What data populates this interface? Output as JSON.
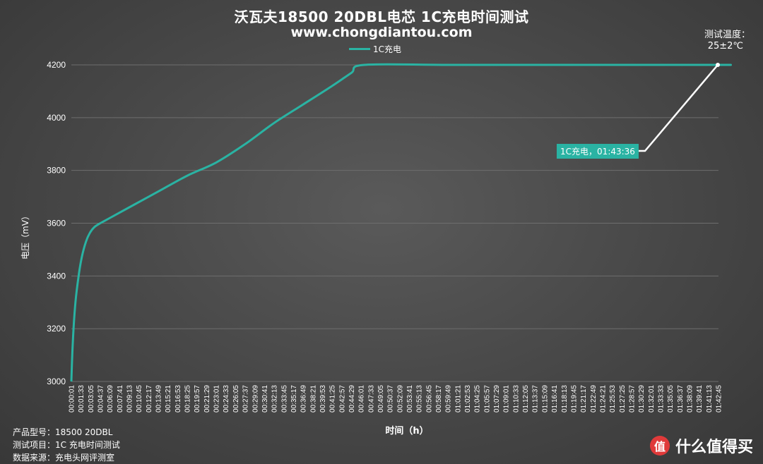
{
  "header": {
    "title": "沃瓦夫18500 20DBL电芯 1C充电时间测试",
    "subtitle": "www.chongdiantou.com",
    "temp_label": "测试温度：",
    "temp_value": "25±2℃"
  },
  "chart_data": {
    "type": "line",
    "title": "沃瓦夫18500 20DBL电芯 1C充电时间测试",
    "xlabel": "时间（h）",
    "ylabel": "电压（mV）",
    "ylim": [
      3000,
      4200
    ],
    "yticks": [
      3000,
      3200,
      3400,
      3600,
      3800,
      4000,
      4200
    ],
    "grid": true,
    "legend_position": "top-center",
    "series": [
      {
        "name": "1C充电",
        "color": "#2ab3a3",
        "points": [
          [
            "00:00:01",
            3000
          ],
          [
            "00:00:15",
            3150
          ],
          [
            "00:00:40",
            3300
          ],
          [
            "00:01:10",
            3400
          ],
          [
            "00:01:40",
            3470
          ],
          [
            "00:02:20",
            3530
          ],
          [
            "00:03:00",
            3565
          ],
          [
            "00:03:40",
            3585
          ],
          [
            "00:04:37",
            3600
          ],
          [
            "00:06:09",
            3620
          ],
          [
            "00:09:13",
            3660
          ],
          [
            "00:13:49",
            3720
          ],
          [
            "00:18:25",
            3780
          ],
          [
            "00:23:01",
            3830
          ],
          [
            "00:27:37",
            3900
          ],
          [
            "00:32:13",
            3980
          ],
          [
            "00:36:49",
            4050
          ],
          [
            "00:41:25",
            4120
          ],
          [
            "00:44:29",
            4170
          ],
          [
            "00:46:30",
            4200
          ],
          [
            "01:00:00",
            4200
          ],
          [
            "01:20:00",
            4200
          ],
          [
            "01:42:45",
            4200
          ],
          [
            "01:43:36",
            4200
          ]
        ]
      }
    ],
    "x_tick_labels": [
      "00:00:01",
      "00:01:33",
      "00:03:05",
      "00:04:37",
      "00:06:09",
      "00:07:41",
      "00:09:13",
      "00:10:45",
      "00:12:17",
      "00:13:49",
      "00:15:21",
      "00:16:53",
      "00:18:25",
      "00:19:57",
      "00:21:29",
      "00:23:01",
      "00:24:33",
      "00:26:05",
      "00:27:37",
      "00:29:09",
      "00:30:41",
      "00:32:13",
      "00:33:45",
      "00:35:17",
      "00:36:49",
      "00:38:21",
      "00:39:53",
      "00:41:25",
      "00:42:57",
      "00:44:29",
      "00:46:01",
      "00:47:33",
      "00:49:05",
      "00:50:37",
      "00:52:09",
      "00:53:41",
      "00:55:13",
      "00:56:45",
      "00:58:17",
      "00:59:49",
      "01:01:21",
      "01:02:53",
      "01:04:25",
      "01:05:57",
      "01:07:29",
      "01:09:01",
      "01:10:33",
      "01:12:05",
      "01:13:37",
      "01:15:09",
      "01:16:41",
      "01:18:13",
      "01:19:45",
      "01:21:17",
      "01:22:49",
      "01:24:21",
      "01:25:53",
      "01:27:25",
      "01:28:57",
      "01:30:29",
      "01:32:01",
      "01:33:33",
      "01:35:05",
      "01:36:37",
      "01:38:09",
      "01:39:41",
      "01:41:13",
      "01:42:45"
    ],
    "annotation": {
      "text": "1C充电，01:43:36",
      "x": "01:43:36",
      "y": 4200
    }
  },
  "footer": {
    "model_key": "产品型号：",
    "model_value": "18500 20DBL",
    "item_key": "测试项目：",
    "item_value": "1C 充电时间测试",
    "source_key": "数据来源：",
    "source_value": "充电头网评测室"
  },
  "watermark": {
    "logo_glyph": "值",
    "text": "什么值得买",
    "logo_color": "#e03a3a"
  }
}
